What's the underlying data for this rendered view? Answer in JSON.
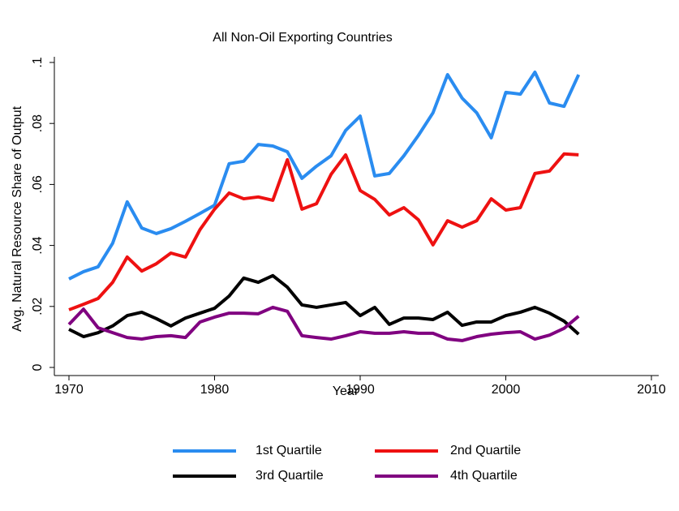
{
  "chart_data": {
    "type": "line",
    "title": "All Non-Oil Exporting Countries",
    "x_label": "Year",
    "y_label": "Avg. Natural Resource Share of Output",
    "x": [
      1970,
      1971,
      1972,
      1973,
      1974,
      1975,
      1976,
      1977,
      1978,
      1979,
      1980,
      1981,
      1982,
      1983,
      1984,
      1985,
      1986,
      1987,
      1988,
      1989,
      1990,
      1991,
      1992,
      1993,
      1994,
      1995,
      1996,
      1997,
      1998,
      1999,
      2000,
      2001,
      2002,
      2003,
      2004,
      2005
    ],
    "xlim": [
      1970,
      2010
    ],
    "xticks": [
      1970,
      1980,
      1990,
      2000,
      2010
    ],
    "ylim": [
      0,
      0.1
    ],
    "yticks": [
      0,
      {
        "value": 0.02,
        "label": ".02"
      },
      {
        "value": 0.04,
        "label": ".04"
      },
      {
        "value": 0.06,
        "label": ".06"
      },
      {
        "value": 0.08,
        "label": ".08"
      },
      {
        "value": 0.1,
        "label": ".1"
      }
    ],
    "series": [
      {
        "name": "1st Quartile",
        "color": "#2a8cf0",
        "values": [
          0.029,
          0.0314,
          0.033,
          0.0407,
          0.0543,
          0.0457,
          0.0439,
          0.0455,
          0.0479,
          0.0505,
          0.0532,
          0.0668,
          0.0676,
          0.0731,
          0.0726,
          0.0707,
          0.062,
          0.066,
          0.0694,
          0.0777,
          0.0824,
          0.0628,
          0.0636,
          0.0694,
          0.0761,
          0.0835,
          0.096,
          0.0883,
          0.0835,
          0.0753,
          0.0902,
          0.0896,
          0.0968,
          0.0867,
          0.0856,
          0.096
        ]
      },
      {
        "name": "2nd Quartile",
        "color": "#ee1111",
        "values": [
          0.0189,
          0.0207,
          0.0226,
          0.0279,
          0.0362,
          0.0316,
          0.034,
          0.0375,
          0.0362,
          0.0452,
          0.0519,
          0.0572,
          0.0553,
          0.0559,
          0.0548,
          0.0681,
          0.0519,
          0.0537,
          0.0633,
          0.0697,
          0.058,
          0.0551,
          0.05,
          0.0524,
          0.0484,
          0.0402,
          0.0481,
          0.046,
          0.0481,
          0.0553,
          0.0516,
          0.0524,
          0.0636,
          0.0644,
          0.07,
          0.0697
        ]
      },
      {
        "name": "3rd Quartile",
        "color": "#000000",
        "values": [
          0.0125,
          0.0101,
          0.0114,
          0.0136,
          0.017,
          0.0181,
          0.016,
          0.0136,
          0.0162,
          0.0178,
          0.0194,
          0.0234,
          0.0293,
          0.0279,
          0.0301,
          0.0263,
          0.0205,
          0.0197,
          0.0205,
          0.0213,
          0.017,
          0.0197,
          0.0141,
          0.0162,
          0.0162,
          0.0157,
          0.0181,
          0.0138,
          0.0149,
          0.0149,
          0.017,
          0.0181,
          0.0197,
          0.0178,
          0.0152,
          0.0109
        ]
      },
      {
        "name": "4th Quartile",
        "color": "#800080",
        "values": [
          0.0141,
          0.0191,
          0.013,
          0.0114,
          0.0098,
          0.0093,
          0.0101,
          0.0104,
          0.0098,
          0.0149,
          0.0165,
          0.0178,
          0.0178,
          0.0176,
          0.0197,
          0.0184,
          0.0104,
          0.0098,
          0.0093,
          0.0104,
          0.0117,
          0.0112,
          0.0112,
          0.0117,
          0.0112,
          0.0112,
          0.0093,
          0.0088,
          0.0101,
          0.0109,
          0.0114,
          0.0117,
          0.0093,
          0.0106,
          0.0128,
          0.0168
        ]
      }
    ]
  }
}
